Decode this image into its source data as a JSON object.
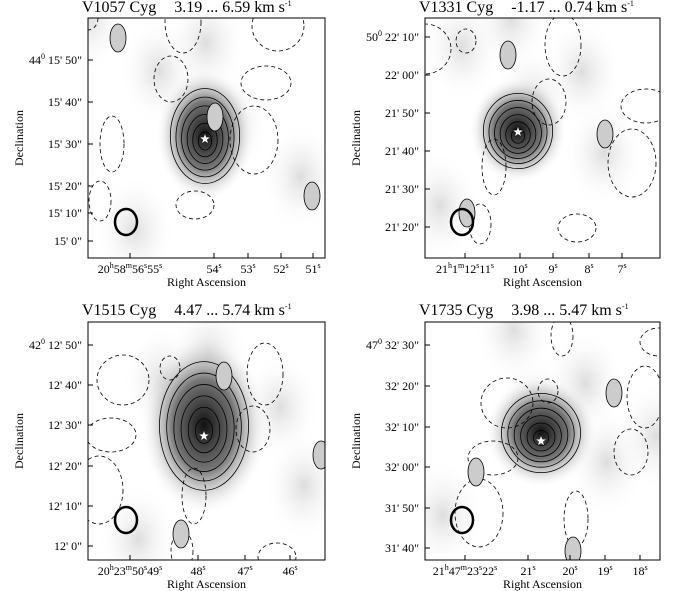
{
  "panels": [
    {
      "name": "V1057 Cyg",
      "range": "3.19 ... 6.59 km s",
      "range_exp": "-1",
      "yticks": [
        {
          "deg": "44",
          "deg_sup": "0",
          "text": "15' 50\""
        },
        {
          "text": "15' 40\""
        },
        {
          "text": "15' 30\""
        },
        {
          "text": "15' 20\""
        },
        {
          "text": "15' 10\""
        },
        {
          "text": "15' 0\""
        }
      ],
      "xticks": [
        [
          [
            "20",
            "h"
          ],
          [
            "58",
            "m"
          ],
          [
            "56",
            "s"
          ],
          [
            "55",
            "s"
          ]
        ],
        [
          [
            "54",
            "s"
          ]
        ],
        [
          [
            "53",
            "s"
          ]
        ],
        [
          [
            "52",
            "s"
          ]
        ],
        [
          [
            "51",
            "s"
          ]
        ]
      ],
      "xlabel": "Right Ascension",
      "ylabel": "Declination"
    },
    {
      "name": "V1331 Cyg",
      "range": "-1.17 ... 0.74 km s",
      "range_exp": "-1",
      "yticks": [
        {
          "deg": "50",
          "deg_sup": "0",
          "text": "22' 10\""
        },
        {
          "text": "22' 00\""
        },
        {
          "text": "21' 50\""
        },
        {
          "text": "21' 40\""
        },
        {
          "text": "21' 30\""
        },
        {
          "text": "21' 20\""
        }
      ],
      "xticks": [
        [
          [
            "21",
            "h"
          ],
          [
            "1",
            "m"
          ],
          [
            "12",
            "s"
          ],
          [
            "11",
            "s"
          ]
        ],
        [
          [
            "10",
            "s"
          ]
        ],
        [
          [
            "9",
            "s"
          ]
        ],
        [
          [
            "8",
            "s"
          ]
        ],
        [
          [
            "7",
            "s"
          ]
        ]
      ],
      "xlabel": "Right Ascension",
      "ylabel": "Declination"
    },
    {
      "name": "V1515 Cyg",
      "range": "4.47 ... 5.74 km s",
      "range_exp": "-1",
      "yticks": [
        {
          "deg": "42",
          "deg_sup": "0",
          "text": "12' 50\""
        },
        {
          "text": "12' 40\""
        },
        {
          "text": "12' 30\""
        },
        {
          "text": "12' 20\""
        },
        {
          "text": "12' 10\""
        },
        {
          "text": "12' 0\""
        }
      ],
      "xticks": [
        [
          [
            "20",
            "h"
          ],
          [
            "23",
            "m"
          ],
          [
            "50",
            "s"
          ],
          [
            "49",
            "s"
          ]
        ],
        [
          [
            "48",
            "s"
          ]
        ],
        [
          [
            "47",
            "s"
          ]
        ],
        [
          [
            "46",
            "s"
          ]
        ]
      ],
      "xlabel": "Right Ascension",
      "ylabel": "Declination"
    },
    {
      "name": "V1735 Cyg",
      "range": "3.98 ... 5.47 km s",
      "range_exp": "-1",
      "yticks": [
        {
          "deg": "47",
          "deg_sup": "0",
          "text": "32' 30\""
        },
        {
          "text": "32' 20\""
        },
        {
          "text": "32' 10\""
        },
        {
          "text": "32' 00\""
        },
        {
          "text": "31' 50\""
        },
        {
          "text": "31' 40\""
        }
      ],
      "xticks": [
        [
          [
            "21",
            "h"
          ],
          [
            "47",
            "m"
          ],
          [
            "23",
            "s"
          ],
          [
            "22",
            "s"
          ]
        ],
        [
          [
            "21",
            "s"
          ]
        ],
        [
          [
            "20",
            "s"
          ]
        ],
        [
          [
            "19",
            "s"
          ]
        ],
        [
          [
            "18",
            "s"
          ]
        ]
      ],
      "xlabel": "Right Ascension",
      "ylabel": "Declination"
    }
  ]
}
